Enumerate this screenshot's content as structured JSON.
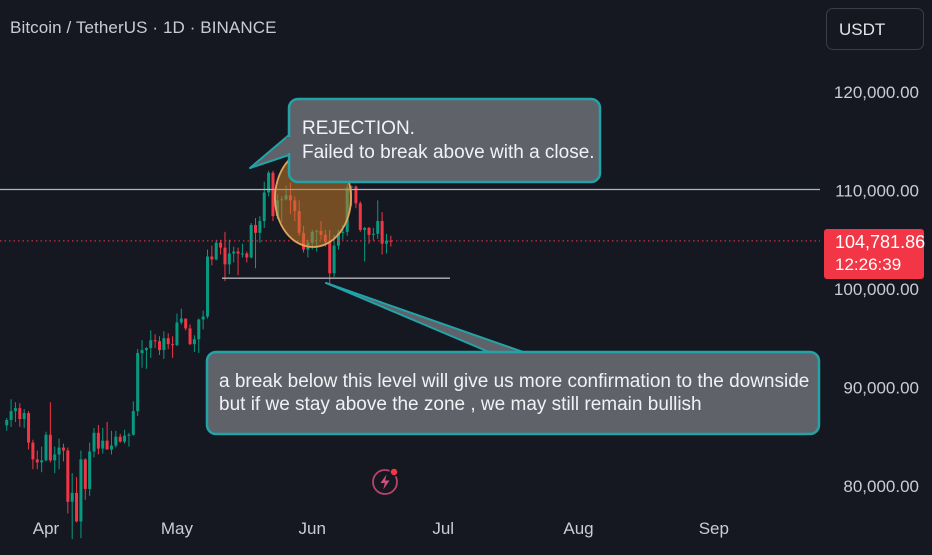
{
  "header": {
    "title": "Bitcoin / TetherUS · 1D · BINANCE",
    "currency_label": "USDT"
  },
  "price_tag": {
    "price": "104,781.86",
    "countdown": "12:26:39"
  },
  "annotations": {
    "rejection": [
      "REJECTION.",
      "Failed to break above with a close."
    ],
    "breakdown": [
      "a break below this  level will give us more confirmation to the downside",
      "but if we stay above the zone , we may still remain bullish"
    ]
  },
  "colors": {
    "up": "#089981",
    "down": "#f23645",
    "background": "#151821",
    "callout_border": "#21a3a8"
  },
  "icons": {
    "flash": "lightning-bolt-icon"
  },
  "chart_data": {
    "type": "candlestick",
    "symbol": "BTCUSDT",
    "interval": "1D",
    "exchange": "BINANCE",
    "x_axis": {
      "ticks": [
        {
          "label": "Apr",
          "date": "2025-04-01"
        },
        {
          "label": "May",
          "date": "2025-05-01"
        },
        {
          "label": "Jun",
          "date": "2025-06-01"
        },
        {
          "label": "Jul",
          "date": "2025-07-01"
        },
        {
          "label": "Aug",
          "date": "2025-08-01"
        },
        {
          "label": "Sep",
          "date": "2025-09-01"
        }
      ]
    },
    "y_axis": {
      "ticks": [
        "120,000.00",
        "110,000.00",
        "100,000.00",
        "90,000.00",
        "80,000.00"
      ],
      "range": [
        76500,
        126500
      ]
    },
    "resistance_level": 110000,
    "support_level": 101000,
    "current_price": 104781.86,
    "candles": [
      {
        "d": "2025-03-23",
        "o": 86050,
        "h": 86800,
        "l": 85500,
        "c": 86600
      },
      {
        "d": "2025-03-24",
        "o": 86600,
        "h": 88700,
        "l": 85900,
        "c": 87500
      },
      {
        "d": "2025-03-25",
        "o": 87500,
        "h": 88400,
        "l": 86400,
        "c": 87800
      },
      {
        "d": "2025-03-26",
        "o": 87800,
        "h": 88300,
        "l": 85900,
        "c": 86700
      },
      {
        "d": "2025-03-27",
        "o": 86700,
        "h": 87700,
        "l": 85800,
        "c": 87300
      },
      {
        "d": "2025-03-28",
        "o": 87300,
        "h": 87500,
        "l": 83600,
        "c": 84300
      },
      {
        "d": "2025-03-29",
        "o": 84300,
        "h": 84600,
        "l": 81600,
        "c": 82600
      },
      {
        "d": "2025-03-30",
        "o": 82600,
        "h": 83500,
        "l": 81600,
        "c": 82300
      },
      {
        "d": "2025-03-31",
        "o": 82300,
        "h": 83900,
        "l": 81300,
        "c": 82500
      },
      {
        "d": "2025-04-01",
        "o": 82500,
        "h": 85400,
        "l": 82400,
        "c": 85100
      },
      {
        "d": "2025-04-02",
        "o": 85100,
        "h": 88400,
        "l": 82300,
        "c": 82500
      },
      {
        "d": "2025-04-03",
        "o": 82500,
        "h": 83900,
        "l": 81200,
        "c": 83100
      },
      {
        "d": "2025-04-04",
        "o": 83100,
        "h": 84700,
        "l": 81600,
        "c": 83800
      },
      {
        "d": "2025-04-05",
        "o": 83800,
        "h": 84200,
        "l": 82400,
        "c": 83500
      },
      {
        "d": "2025-04-06",
        "o": 83500,
        "h": 83800,
        "l": 77100,
        "c": 78300
      },
      {
        "d": "2025-04-07",
        "o": 78300,
        "h": 81200,
        "l": 74500,
        "c": 79200
      },
      {
        "d": "2025-04-08",
        "o": 79200,
        "h": 80800,
        "l": 76200,
        "c": 76300
      },
      {
        "d": "2025-04-09",
        "o": 76300,
        "h": 83500,
        "l": 74600,
        "c": 82600
      },
      {
        "d": "2025-04-10",
        "o": 82600,
        "h": 82700,
        "l": 78500,
        "c": 79600
      },
      {
        "d": "2025-04-11",
        "o": 79600,
        "h": 84300,
        "l": 78900,
        "c": 83400
      },
      {
        "d": "2025-04-12",
        "o": 83400,
        "h": 85800,
        "l": 82800,
        "c": 85300
      },
      {
        "d": "2025-04-13",
        "o": 85300,
        "h": 86100,
        "l": 83100,
        "c": 83700
      },
      {
        "d": "2025-04-14",
        "o": 83700,
        "h": 85800,
        "l": 83200,
        "c": 84500
      },
      {
        "d": "2025-04-15",
        "o": 84500,
        "h": 86400,
        "l": 83700,
        "c": 83600
      },
      {
        "d": "2025-04-16",
        "o": 83600,
        "h": 85500,
        "l": 83100,
        "c": 84000
      },
      {
        "d": "2025-04-17",
        "o": 84000,
        "h": 85500,
        "l": 83800,
        "c": 84900
      },
      {
        "d": "2025-04-18",
        "o": 84900,
        "h": 85200,
        "l": 84300,
        "c": 84400
      },
      {
        "d": "2025-04-19",
        "o": 84400,
        "h": 85600,
        "l": 84200,
        "c": 85000
      },
      {
        "d": "2025-04-20",
        "o": 85000,
        "h": 85300,
        "l": 83900,
        "c": 85100
      },
      {
        "d": "2025-04-21",
        "o": 85100,
        "h": 88500,
        "l": 85000,
        "c": 87500
      },
      {
        "d": "2025-04-22",
        "o": 87500,
        "h": 93800,
        "l": 87000,
        "c": 93400
      },
      {
        "d": "2025-04-23",
        "o": 93400,
        "h": 94700,
        "l": 91900,
        "c": 93700
      },
      {
        "d": "2025-04-24",
        "o": 93700,
        "h": 94000,
        "l": 91800,
        "c": 93900
      },
      {
        "d": "2025-04-25",
        "o": 93900,
        "h": 95700,
        "l": 92900,
        "c": 94700
      },
      {
        "d": "2025-04-26",
        "o": 94700,
        "h": 95300,
        "l": 93900,
        "c": 94600
      },
      {
        "d": "2025-04-27",
        "o": 94600,
        "h": 95100,
        "l": 93200,
        "c": 93700
      },
      {
        "d": "2025-04-28",
        "o": 93700,
        "h": 95600,
        "l": 92800,
        "c": 94900
      },
      {
        "d": "2025-04-29",
        "o": 94900,
        "h": 95400,
        "l": 93800,
        "c": 94300
      },
      {
        "d": "2025-04-30",
        "o": 94300,
        "h": 95100,
        "l": 92900,
        "c": 94200
      },
      {
        "d": "2025-05-01",
        "o": 94200,
        "h": 97400,
        "l": 94100,
        "c": 96500
      },
      {
        "d": "2025-05-02",
        "o": 96500,
        "h": 97900,
        "l": 96300,
        "c": 96900
      },
      {
        "d": "2025-05-03",
        "o": 96900,
        "h": 96900,
        "l": 95700,
        "c": 95900
      },
      {
        "d": "2025-05-04",
        "o": 95900,
        "h": 96300,
        "l": 94200,
        "c": 94300
      },
      {
        "d": "2025-05-05",
        "o": 94300,
        "h": 95200,
        "l": 93500,
        "c": 94800
      },
      {
        "d": "2025-05-06",
        "o": 94800,
        "h": 96900,
        "l": 93400,
        "c": 96800
      },
      {
        "d": "2025-05-07",
        "o": 96800,
        "h": 97700,
        "l": 95800,
        "c": 97100
      },
      {
        "d": "2025-05-08",
        "o": 97100,
        "h": 103900,
        "l": 96900,
        "c": 103200
      },
      {
        "d": "2025-05-09",
        "o": 103200,
        "h": 104300,
        "l": 102300,
        "c": 102900
      },
      {
        "d": "2025-05-10",
        "o": 102900,
        "h": 104900,
        "l": 102800,
        "c": 104600
      },
      {
        "d": "2025-05-11",
        "o": 104600,
        "h": 104900,
        "l": 103400,
        "c": 104100
      },
      {
        "d": "2025-05-12",
        "o": 104100,
        "h": 105700,
        "l": 100700,
        "c": 102400
      },
      {
        "d": "2025-05-13",
        "o": 102400,
        "h": 104900,
        "l": 101400,
        "c": 103500
      },
      {
        "d": "2025-05-14",
        "o": 103500,
        "h": 104200,
        "l": 102600,
        "c": 103700
      },
      {
        "d": "2025-05-15",
        "o": 103700,
        "h": 104100,
        "l": 101300,
        "c": 103500
      },
      {
        "d": "2025-05-16",
        "o": 103500,
        "h": 104500,
        "l": 103100,
        "c": 103500
      },
      {
        "d": "2025-05-17",
        "o": 103500,
        "h": 103700,
        "l": 102600,
        "c": 103100
      },
      {
        "d": "2025-05-18",
        "o": 103100,
        "h": 106600,
        "l": 103000,
        "c": 106400
      },
      {
        "d": "2025-05-19",
        "o": 106400,
        "h": 107100,
        "l": 102000,
        "c": 105600
      },
      {
        "d": "2025-05-20",
        "o": 105600,
        "h": 107300,
        "l": 104600,
        "c": 106800
      },
      {
        "d": "2025-05-21",
        "o": 106800,
        "h": 110800,
        "l": 106100,
        "c": 109700
      },
      {
        "d": "2025-05-22",
        "o": 109700,
        "h": 111900,
        "l": 109300,
        "c": 111700
      },
      {
        "d": "2025-05-23",
        "o": 111700,
        "h": 111900,
        "l": 106800,
        "c": 107300
      },
      {
        "d": "2025-05-24",
        "o": 107300,
        "h": 109500,
        "l": 107000,
        "c": 108900
      },
      {
        "d": "2025-05-25",
        "o": 108900,
        "h": 109300,
        "l": 106700,
        "c": 109000
      },
      {
        "d": "2025-05-26",
        "o": 109000,
        "h": 110400,
        "l": 108900,
        "c": 109400
      },
      {
        "d": "2025-05-27",
        "o": 109400,
        "h": 110700,
        "l": 107500,
        "c": 108900
      },
      {
        "d": "2025-05-28",
        "o": 108900,
        "h": 109300,
        "l": 106800,
        "c": 107800
      },
      {
        "d": "2025-05-29",
        "o": 107800,
        "h": 108900,
        "l": 105300,
        "c": 105600
      },
      {
        "d": "2025-05-30",
        "o": 105600,
        "h": 106300,
        "l": 103600,
        "c": 103900
      },
      {
        "d": "2025-05-31",
        "o": 103900,
        "h": 104900,
        "l": 103100,
        "c": 104600
      },
      {
        "d": "2025-06-01",
        "o": 104600,
        "h": 105900,
        "l": 103900,
        "c": 105700
      },
      {
        "d": "2025-06-02",
        "o": 105700,
        "h": 105900,
        "l": 103700,
        "c": 105800
      },
      {
        "d": "2025-06-03",
        "o": 105800,
        "h": 106800,
        "l": 104900,
        "c": 105400
      },
      {
        "d": "2025-06-04",
        "o": 105400,
        "h": 105900,
        "l": 104200,
        "c": 104700
      },
      {
        "d": "2025-06-05",
        "o": 104700,
        "h": 105900,
        "l": 100400,
        "c": 101500
      },
      {
        "d": "2025-06-06",
        "o": 101500,
        "h": 105400,
        "l": 101100,
        "c": 104300
      },
      {
        "d": "2025-06-07",
        "o": 104300,
        "h": 105900,
        "l": 103900,
        "c": 105600
      },
      {
        "d": "2025-06-08",
        "o": 105600,
        "h": 106400,
        "l": 104900,
        "c": 105700
      },
      {
        "d": "2025-06-09",
        "o": 105700,
        "h": 110500,
        "l": 105300,
        "c": 110200
      },
      {
        "d": "2025-06-10",
        "o": 110200,
        "h": 110400,
        "l": 108300,
        "c": 110300
      },
      {
        "d": "2025-06-11",
        "o": 110300,
        "h": 110400,
        "l": 108100,
        "c": 108600
      },
      {
        "d": "2025-06-12",
        "o": 108600,
        "h": 108800,
        "l": 105700,
        "c": 105900
      },
      {
        "d": "2025-06-13",
        "o": 105900,
        "h": 106200,
        "l": 102700,
        "c": 106100
      },
      {
        "d": "2025-06-14",
        "o": 106100,
        "h": 106200,
        "l": 104500,
        "c": 105400
      },
      {
        "d": "2025-06-15",
        "o": 105400,
        "h": 106100,
        "l": 104800,
        "c": 105500
      },
      {
        "d": "2025-06-16",
        "o": 105500,
        "h": 108900,
        "l": 105000,
        "c": 106800
      },
      {
        "d": "2025-06-17",
        "o": 106800,
        "h": 107700,
        "l": 103400,
        "c": 104500
      },
      {
        "d": "2025-06-18",
        "o": 104500,
        "h": 105500,
        "l": 103500,
        "c": 104800
      },
      {
        "d": "2025-06-19",
        "o": 104800,
        "h": 105300,
        "l": 104200,
        "c": 104781.86
      }
    ]
  }
}
